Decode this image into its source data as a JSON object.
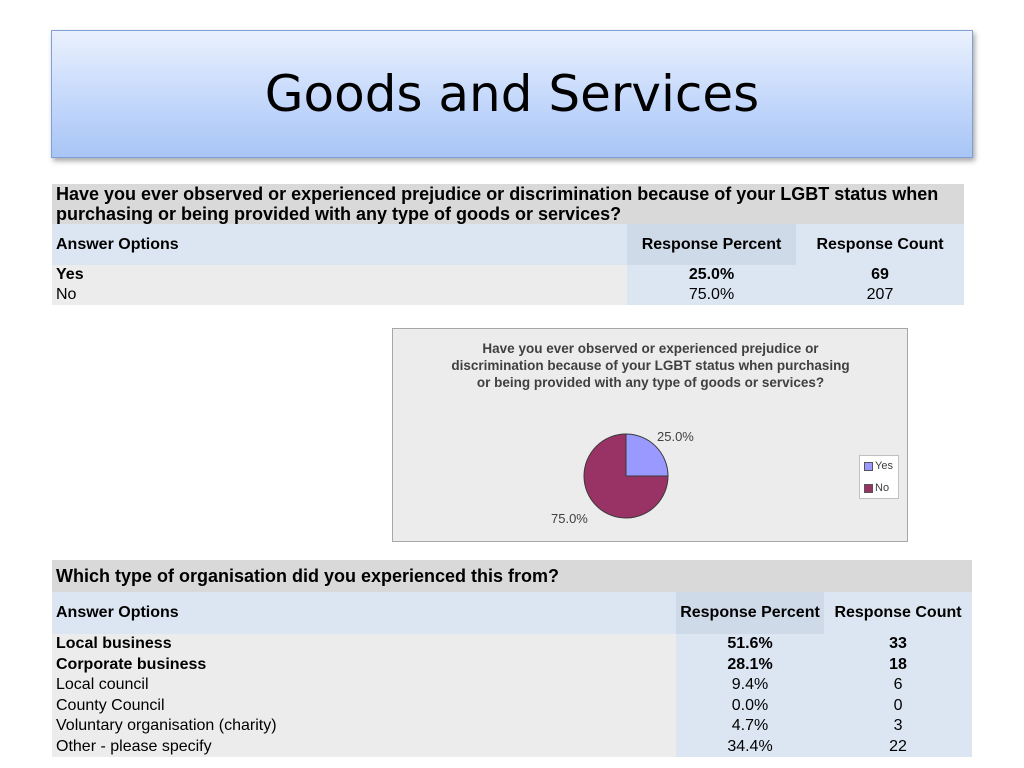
{
  "slide": {
    "title": "Goods and Services"
  },
  "table1": {
    "question": "Have you ever observed or experienced prejudice or discrimination because of your LGBT status when purchasing or being provided with any type of goods or services?",
    "headers": {
      "answer": "Answer Options",
      "percent": "Response Percent",
      "count": "Response Count"
    },
    "rows": [
      {
        "label": "Yes",
        "percent": "25.0%",
        "count": "69"
      },
      {
        "label": "No",
        "percent": "75.0%",
        "count": "207"
      }
    ]
  },
  "chart_data": {
    "type": "pie",
    "title": "Have you ever observed or experienced prejudice or discrimination because of your LGBT status when purchasing or being provided with any type of goods or services?",
    "categories": [
      "Yes",
      "No"
    ],
    "values": [
      25.0,
      75.0
    ],
    "data_labels": [
      "25.0%",
      "75.0%"
    ],
    "colors": [
      "#9999ff",
      "#993366"
    ],
    "legend": "right"
  },
  "table2": {
    "question": "Which type of organisation did you experienced this from?",
    "headers": {
      "answer": "Answer Options",
      "percent": "Response Percent",
      "count": "Response Count"
    },
    "rows": [
      {
        "label": "Local business",
        "percent": "51.6%",
        "count": "33"
      },
      {
        "label": "Corporate business",
        "percent": "28.1%",
        "count": "18"
      },
      {
        "label": "Local council",
        "percent": "9.4%",
        "count": "6"
      },
      {
        "label": "County Council",
        "percent": "0.0%",
        "count": "0"
      },
      {
        "label": "Voluntary organisation (charity)",
        "percent": "4.7%",
        "count": "3"
      },
      {
        "label": "Other - please specify",
        "percent": "34.4%",
        "count": "22"
      }
    ]
  }
}
